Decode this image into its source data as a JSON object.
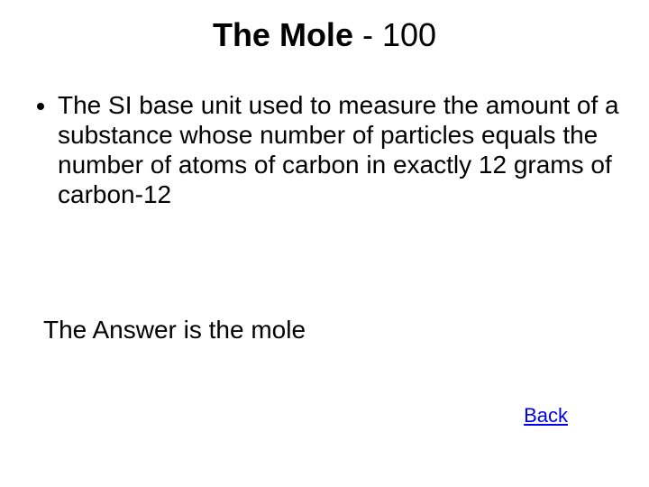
{
  "slide": {
    "title_category": "The Mole",
    "title_separator": " - ",
    "title_points": "100",
    "bullet_text": "The SI base unit used to measure the amount of a substance whose number of particles equals the number of atoms of carbon in exactly 12 grams of carbon-12",
    "answer_text": "The Answer is the mole",
    "back_label": "Back"
  },
  "colors": {
    "background": "#ffffff",
    "text": "#000000",
    "link": "#0000ee"
  },
  "typography": {
    "title_fontsize": 36,
    "body_fontsize": 28,
    "link_fontsize": 22,
    "font_family": "Arial"
  }
}
